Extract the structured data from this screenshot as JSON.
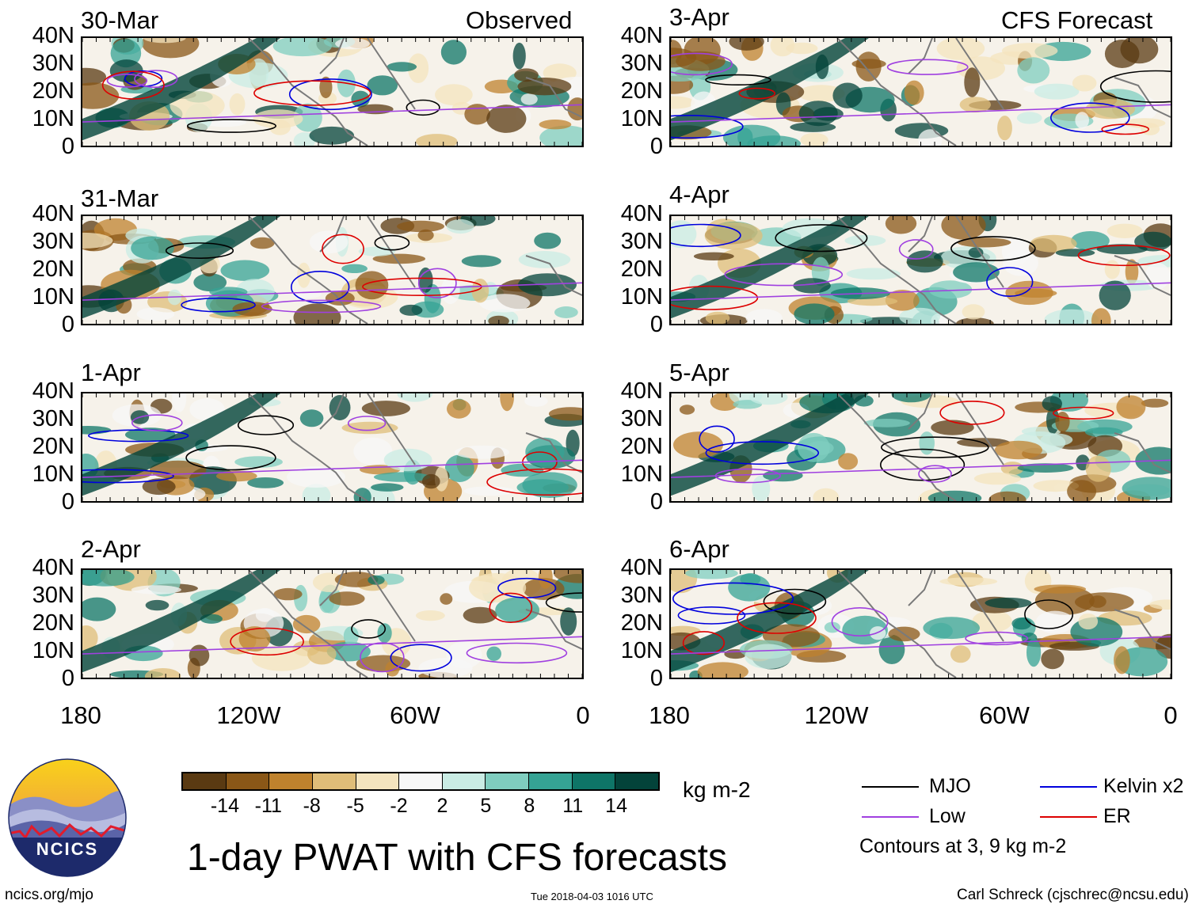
{
  "panels_left": [
    {
      "date": "30-Mar",
      "tag": "Observed"
    },
    {
      "date": "31-Mar",
      "tag": ""
    },
    {
      "date": "1-Apr",
      "tag": ""
    },
    {
      "date": "2-Apr",
      "tag": ""
    }
  ],
  "panels_right": [
    {
      "date": "3-Apr",
      "tag": "CFS Forecast"
    },
    {
      "date": "4-Apr",
      "tag": ""
    },
    {
      "date": "5-Apr",
      "tag": ""
    },
    {
      "date": "6-Apr",
      "tag": ""
    }
  ],
  "y_ticks": [
    "40N",
    "30N",
    "20N",
    "10N",
    "0"
  ],
  "x_ticks": [
    "180",
    "120W",
    "60W",
    "0"
  ],
  "colorbar": {
    "colors": [
      "#5a3a12",
      "#8a5717",
      "#bf822d",
      "#dfbd78",
      "#f4e4be",
      "#f7f7f7",
      "#c9ece4",
      "#7fcdbf",
      "#35a394",
      "#0e7567",
      "#03433a"
    ],
    "labels": [
      "-14",
      "-11",
      "-8",
      "-5",
      "-2",
      "2",
      "5",
      "8",
      "11",
      "14"
    ],
    "units": "kg m-2"
  },
  "title": "1-day PWAT with CFS forecasts",
  "legend": {
    "items": [
      {
        "label": "MJO",
        "color": "#000000"
      },
      {
        "label": "Kelvin x2",
        "color": "#0000dd"
      },
      {
        "label": "Low",
        "color": "#a040e0"
      },
      {
        "label": "ER",
        "color": "#dd0000"
      }
    ],
    "note": "Contours at 3, 9 kg m-2"
  },
  "logo": {
    "text": "NCICS"
  },
  "footer": {
    "left": "ncics.org/mjo",
    "center": "Tue 2018-04-03 1016 UTC",
    "right": "Carl Schreck (cjschrec@ncsu.edu)"
  }
}
